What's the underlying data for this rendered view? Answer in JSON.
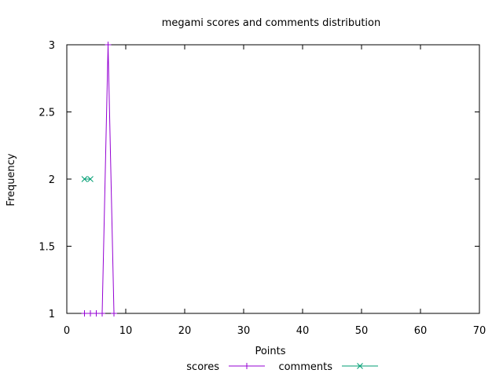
{
  "chart_data": {
    "type": "line",
    "title": "megami scores and comments distribution",
    "xlabel": "Points",
    "ylabel": "Frequency",
    "xlim": [
      0,
      70
    ],
    "ylim": [
      1,
      3
    ],
    "xticks": [
      0,
      10,
      20,
      30,
      40,
      50,
      60,
      70
    ],
    "yticks": [
      1,
      1.5,
      2,
      2.5,
      3
    ],
    "xtick_labels": [
      "0",
      "10",
      "20",
      "30",
      "40",
      "50",
      "60",
      "70"
    ],
    "ytick_labels": [
      "1",
      "1.5",
      "2",
      "2.5",
      "3"
    ],
    "grid": false,
    "legend_position": "bottom-center",
    "series": [
      {
        "name": "scores",
        "color": "#9400d3",
        "marker": "plus",
        "points": [
          [
            3,
            1
          ],
          [
            4,
            1
          ],
          [
            5,
            1
          ],
          [
            6,
            1
          ],
          [
            7,
            3
          ],
          [
            8,
            1
          ]
        ]
      },
      {
        "name": "comments",
        "color": "#009e73",
        "marker": "cross",
        "points": [
          [
            3,
            2
          ],
          [
            4,
            2
          ]
        ]
      }
    ]
  }
}
